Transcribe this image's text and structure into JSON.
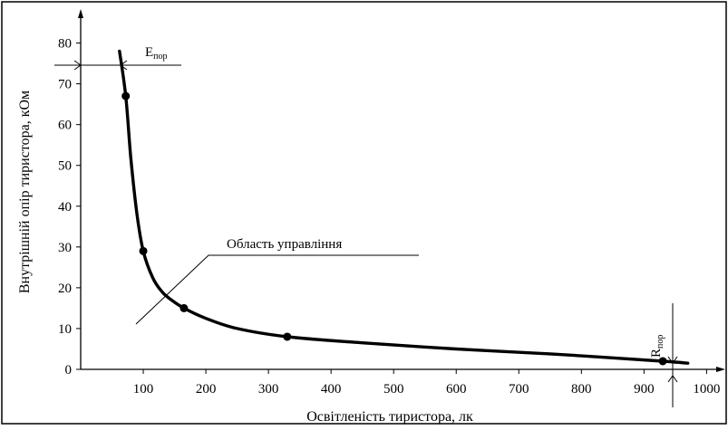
{
  "chart_data": {
    "type": "line",
    "xlabel": "Освітленість тиристора, лк",
    "ylabel": "Внутрішній опір тиристора, кОм",
    "xlim": [
      0,
      1040
    ],
    "ylim": [
      0,
      85
    ],
    "x_ticks": [
      100,
      200,
      300,
      400,
      500,
      600,
      700,
      800,
      900,
      1000
    ],
    "y_ticks": [
      0,
      10,
      20,
      30,
      40,
      50,
      60,
      70,
      80
    ],
    "grid": false,
    "series": [
      {
        "points": [
          {
            "x": 72,
            "y": 67
          },
          {
            "x": 100,
            "y": 29
          },
          {
            "x": 165,
            "y": 15
          },
          {
            "x": 330,
            "y": 8
          },
          {
            "x": 930,
            "y": 2
          }
        ]
      }
    ],
    "curve": [
      {
        "x": 62,
        "y": 78
      },
      {
        "x": 72,
        "y": 67
      },
      {
        "x": 80,
        "y": 52
      },
      {
        "x": 90,
        "y": 38
      },
      {
        "x": 100,
        "y": 29
      },
      {
        "x": 115,
        "y": 22.5
      },
      {
        "x": 130,
        "y": 19
      },
      {
        "x": 145,
        "y": 17
      },
      {
        "x": 165,
        "y": 15
      },
      {
        "x": 200,
        "y": 12.5
      },
      {
        "x": 250,
        "y": 10
      },
      {
        "x": 330,
        "y": 8
      },
      {
        "x": 450,
        "y": 6.5
      },
      {
        "x": 600,
        "y": 5
      },
      {
        "x": 750,
        "y": 3.8
      },
      {
        "x": 930,
        "y": 2
      },
      {
        "x": 970,
        "y": 1.5
      }
    ],
    "annotations": {
      "e_threshold": {
        "label": "E",
        "sub": "пор",
        "y": 73
      },
      "r_threshold": {
        "label": "R",
        "sub": "пор",
        "x": 960
      },
      "control_region": {
        "label": "Область управління"
      }
    }
  }
}
